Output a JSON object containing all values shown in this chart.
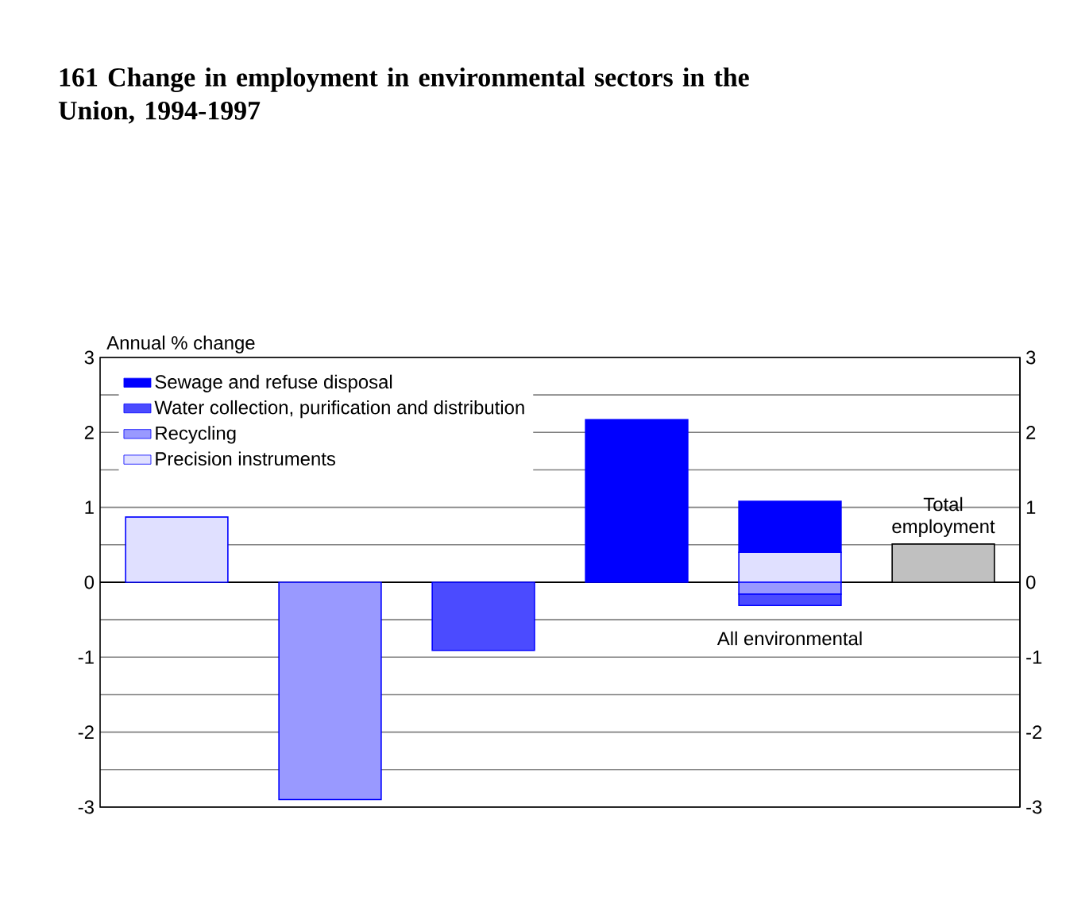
{
  "chart_data": {
    "type": "bar",
    "title": "161   Change in employment in environmental sectors in the Union, 1994-1997",
    "ylabel": "Annual % change",
    "categories": [
      null,
      null,
      null,
      null,
      "All environmental",
      "Total employment"
    ],
    "stacked": true,
    "series": [
      {
        "name": "Precision instruments",
        "color": "#e0e0ff",
        "values": [
          0.87,
          null,
          null,
          null,
          0.4,
          null
        ]
      },
      {
        "name": "Recycling",
        "color": "#9999ff",
        "values": [
          null,
          -2.9,
          null,
          null,
          -0.16,
          null
        ]
      },
      {
        "name": "Water collection, purification and distribution",
        "color": "#4b4bff",
        "values": [
          null,
          null,
          -0.91,
          null,
          -0.15,
          null
        ]
      },
      {
        "name": "Sewage and refuse disposal",
        "color": "#0000ff",
        "values": [
          null,
          null,
          null,
          2.17,
          0.68,
          null
        ]
      },
      {
        "color": "#c0c0c0",
        "values": [
          null,
          null,
          null,
          null,
          null,
          0.51
        ]
      }
    ],
    "ylim": [
      -3,
      3
    ],
    "yticks": [
      -3,
      -2,
      -1,
      0,
      1,
      2,
      3
    ],
    "y2lim": [
      -3,
      3
    ],
    "y2ticks": [
      -3,
      -2,
      -1,
      0,
      1,
      2,
      3
    ],
    "grid": "y",
    "legend": "top left"
  }
}
